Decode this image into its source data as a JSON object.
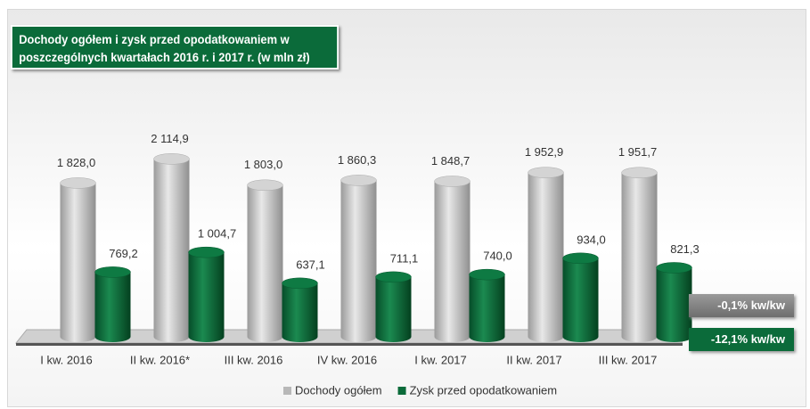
{
  "chart_data": {
    "type": "bar3d",
    "title": "Dochody ogółem i zysk przed opodatkowaniem w poszczególnych kwartałach  2016 r. i  2017 r. (w mln zł)",
    "categories": [
      "I kw. 2016",
      "II kw. 2016*",
      "III kw. 2016",
      "IV kw. 2016",
      "I kw. 2017",
      "II kw. 2017",
      "III kw. 2017"
    ],
    "series": [
      {
        "name": "Dochody ogółem",
        "color": "#b8b8b8",
        "values": [
          1828.0,
          2114.9,
          1803.0,
          1860.3,
          1848.7,
          1952.9,
          1951.7
        ],
        "value_labels": [
          "1 828,0",
          "2 114,9",
          "1 803,0",
          "1 860,3",
          "1 848,7",
          "1 952,9",
          "1 951,7"
        ]
      },
      {
        "name": "Zysk przed opodatkowaniem",
        "color": "#0b6b3a",
        "values": [
          769.2,
          1004.7,
          637.1,
          711.1,
          740.0,
          934.0,
          821.3
        ],
        "value_labels": [
          "769,2",
          "1 004,7",
          "637,1",
          "711,1",
          "740,0",
          "934,0",
          "821,3"
        ]
      }
    ],
    "ylim": [
      0,
      2500
    ],
    "annotations": [
      "-0,1% kw/kw",
      "-12,1% kw/kw"
    ]
  }
}
